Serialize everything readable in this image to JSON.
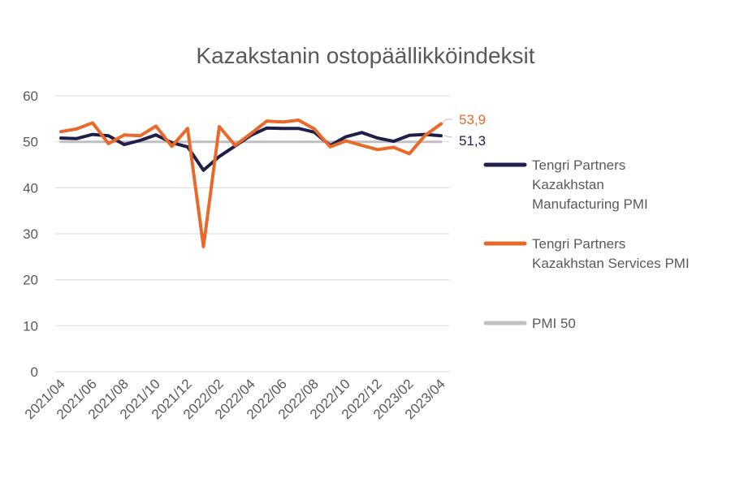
{
  "chart_data": {
    "type": "line",
    "title": "Kazakstanin ostopäällikköindeksit",
    "xlabel": "",
    "ylabel": "",
    "ylim": [
      0,
      60
    ],
    "yticks": [
      "0",
      "10",
      "20",
      "30",
      "40",
      "50",
      "60"
    ],
    "yticks_values": [
      0,
      10,
      20,
      30,
      40,
      50,
      60
    ],
    "grid": true,
    "legend_position": "right",
    "x": [
      "2021/04",
      "2021/05",
      "2021/06",
      "2021/07",
      "2021/08",
      "2021/09",
      "2021/10",
      "2021/11",
      "2021/12",
      "2022/01",
      "2022/02",
      "2022/03",
      "2022/04",
      "2022/05",
      "2022/06",
      "2022/07",
      "2022/08",
      "2022/09",
      "2022/10",
      "2022/11",
      "2022/12",
      "2023/01",
      "2023/02",
      "2023/03",
      "2023/04"
    ],
    "xtick_labels": [
      "2021/04",
      "2021/06",
      "2021/08",
      "2021/10",
      "2021/12",
      "2022/02",
      "2022/04",
      "2022/06",
      "2022/08",
      "2022/10",
      "2022/12",
      "2023/02",
      "2023/04"
    ],
    "series": [
      {
        "name": "Tengri Partners Kazakhstan Manufacturing PMI",
        "legend_lines": [
          "Tengri Partners",
          "Kazakhstan",
          "Manufacturing PMI"
        ],
        "color": "#1f1f4a",
        "values": [
          50.8,
          50.7,
          51.6,
          51.3,
          49.4,
          50.3,
          51.5,
          49.8,
          48.9,
          43.8,
          46.8,
          49.1,
          51.4,
          53.0,
          52.9,
          52.9,
          52.1,
          49.2,
          51.1,
          52.0,
          50.8,
          50.1,
          51.4,
          51.6,
          51.3
        ],
        "end_label": "51,3"
      },
      {
        "name": "Tengri Partners Kazakhstan Services PMI",
        "legend_lines": [
          "Tengri Partners",
          "Kazakhstan Services PMI"
        ],
        "color": "#e8692a",
        "values": [
          52.2,
          52.8,
          54.1,
          49.6,
          51.5,
          51.3,
          53.4,
          49.0,
          52.9,
          27.2,
          53.3,
          49.2,
          51.8,
          54.5,
          54.3,
          54.7,
          52.8,
          48.9,
          50.2,
          49.2,
          48.3,
          48.8,
          47.4,
          51.4,
          53.9
        ],
        "end_label": "53,9"
      },
      {
        "name": "PMI 50",
        "legend_lines": [
          "PMI 50"
        ],
        "color": "#bfbfbf",
        "values": [
          50,
          50,
          50,
          50,
          50,
          50,
          50,
          50,
          50,
          50,
          50,
          50,
          50,
          50,
          50,
          50,
          50,
          50,
          50,
          50,
          50,
          50,
          50,
          50,
          50
        ]
      }
    ]
  }
}
